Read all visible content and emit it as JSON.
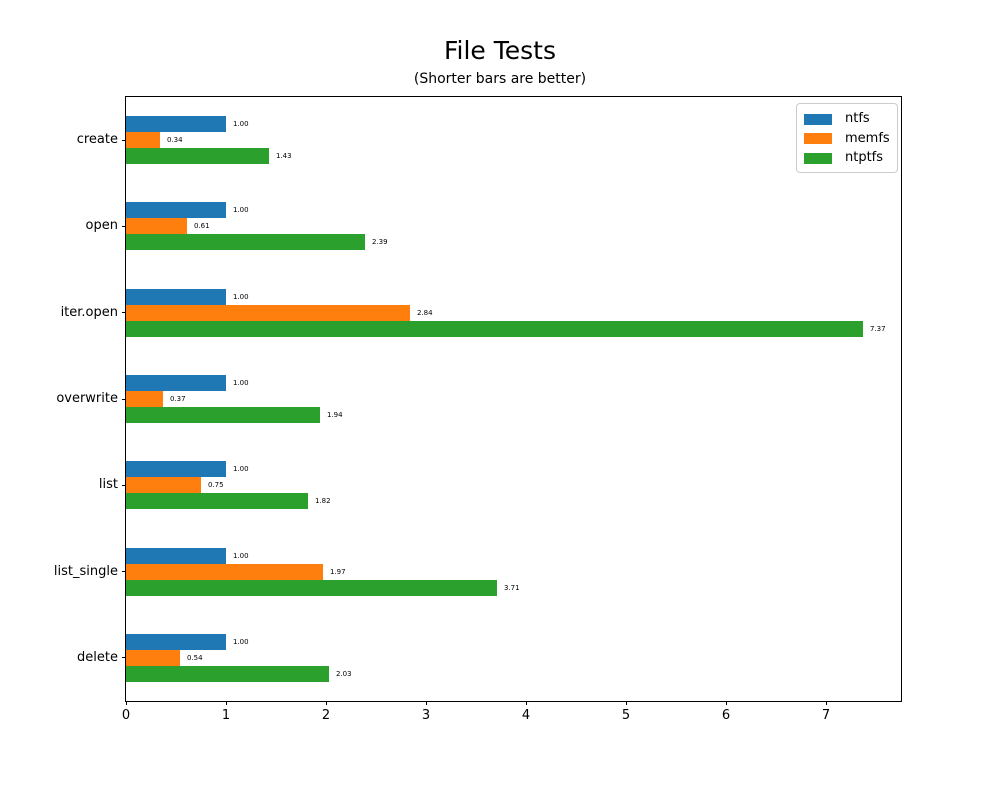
{
  "chart_data": {
    "type": "bar",
    "orientation": "horizontal",
    "title": "File Tests",
    "subtitle": "(Shorter bars are better)",
    "categories": [
      "create",
      "open",
      "iter.open",
      "overwrite",
      "list",
      "list_single",
      "delete"
    ],
    "series": [
      {
        "name": "ntfs",
        "color": "#1f77b4",
        "values": [
          1.0,
          1.0,
          1.0,
          1.0,
          1.0,
          1.0,
          1.0
        ],
        "labels": [
          "1.00",
          "1.00",
          "1.00",
          "1.00",
          "1.00",
          "1.00",
          "1.00"
        ]
      },
      {
        "name": "memfs",
        "color": "#ff7f0e",
        "values": [
          0.34,
          0.61,
          2.84,
          0.37,
          0.75,
          1.97,
          0.54
        ],
        "labels": [
          "0.34",
          "0.61",
          "2.84",
          "0.37",
          "0.75",
          "1.97",
          "0.54"
        ]
      },
      {
        "name": "ntptfs",
        "color": "#2ca02c",
        "values": [
          1.43,
          2.39,
          7.37,
          1.94,
          1.82,
          3.71,
          2.03
        ],
        "labels": [
          "1.43",
          "2.39",
          "7.37",
          "1.94",
          "1.82",
          "3.71",
          "2.03"
        ]
      }
    ],
    "x_ticks": [
      "0",
      "1",
      "2",
      "3",
      "4",
      "5",
      "6",
      "7"
    ],
    "xlim": [
      0,
      7.75
    ],
    "xlabel": "",
    "ylabel": "",
    "grid": false,
    "legend_position": "upper right",
    "axis_color": "#000000",
    "background_color": "#ffffff"
  }
}
